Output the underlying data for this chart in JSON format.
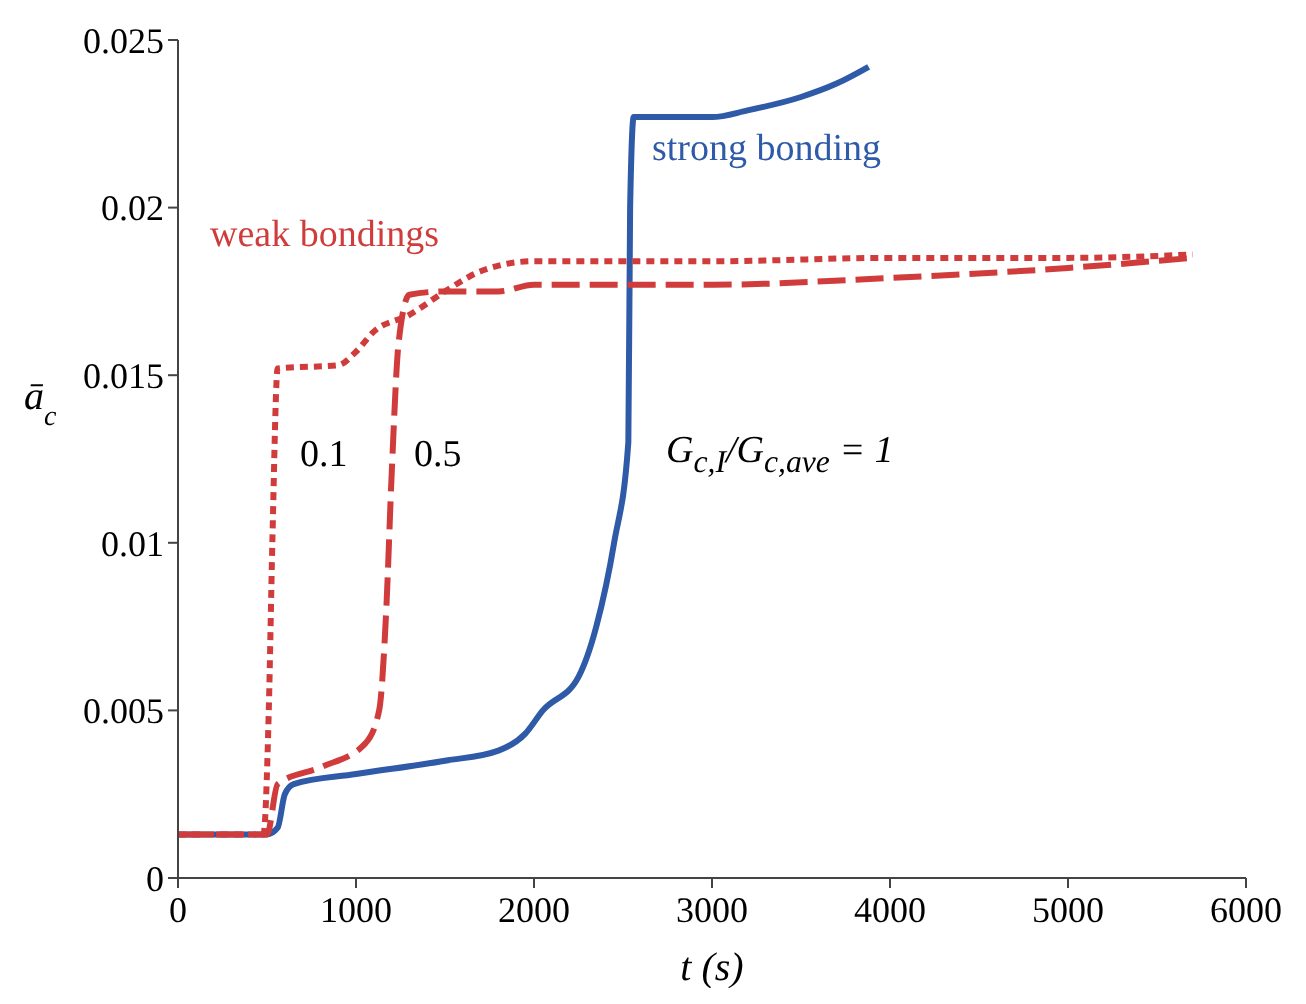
{
  "chart_data": {
    "type": "line",
    "xlabel": "t (s)",
    "ylabel": "ā$_{c}$",
    "xlim": [
      0,
      6000
    ],
    "xticks": [
      0,
      1000,
      2000,
      3000,
      4000,
      5000,
      6000
    ],
    "ylim": [
      0,
      0.025
    ],
    "yticks": [
      0,
      0.005,
      0.01,
      0.015,
      0.02,
      0.025
    ],
    "marker": "none",
    "series": [
      {
        "color": "#2e5aa8",
        "line_style": "solid",
        "x": [
          0,
          500,
          560,
          600,
          650,
          1000,
          1500,
          1800,
          1950,
          2050,
          2250,
          2350,
          2450,
          2530,
          2540,
          2560,
          3000,
          3200,
          3500,
          3700,
          3880
        ],
        "values": [
          0.0013,
          0.0013,
          0.0015,
          0.0025,
          0.0028,
          0.0031,
          0.0035,
          0.0038,
          0.0043,
          0.005,
          0.006,
          0.0075,
          0.01,
          0.013,
          0.02,
          0.0227,
          0.0227,
          0.0229,
          0.0233,
          0.0237,
          0.0242
        ]
      },
      {
        "color": "#d03c3c",
        "line_style": "dotted",
        "x": [
          0,
          480,
          510,
          530,
          560,
          900,
          1000,
          1100,
          1300,
          1500,
          1700,
          2000,
          3000,
          4000,
          5000,
          5700
        ],
        "values": [
          0.0013,
          0.0013,
          0.005,
          0.01,
          0.0152,
          0.0153,
          0.0157,
          0.0163,
          0.0168,
          0.0175,
          0.0181,
          0.0184,
          0.0184,
          0.0185,
          0.0185,
          0.0186
        ]
      },
      {
        "color": "#d03c3c",
        "line_style": "dashed",
        "x": [
          0,
          500,
          560,
          800,
          1050,
          1130,
          1170,
          1200,
          1240,
          1300,
          1500,
          1800,
          2000,
          3000,
          4000,
          5000,
          5700
        ],
        "values": [
          0.0013,
          0.0013,
          0.0028,
          0.0033,
          0.004,
          0.005,
          0.008,
          0.012,
          0.016,
          0.0174,
          0.0175,
          0.0175,
          0.0177,
          0.0177,
          0.0179,
          0.0182,
          0.0185
        ]
      }
    ],
    "annotations": [
      "weak bondings",
      "strong bonding",
      "0.1",
      "0.5",
      "G$_{c,I}$/G$_{c,ave}$ = 1"
    ]
  }
}
